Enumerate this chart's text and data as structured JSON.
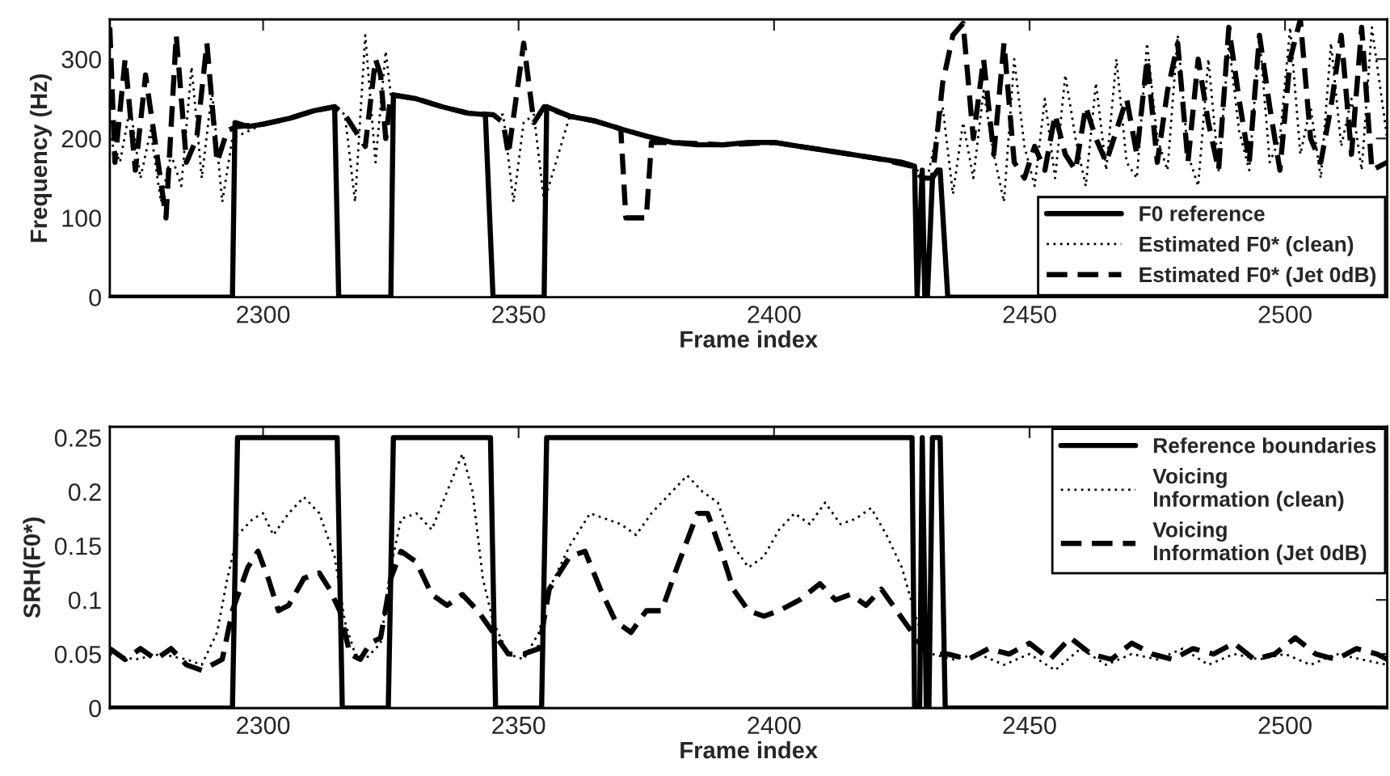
{
  "chart_data": [
    {
      "type": "line",
      "xlabel": "Frame index",
      "ylabel": "Frequency (Hz)",
      "xlim": [
        2270,
        2520
      ],
      "ylim": [
        0,
        350
      ],
      "xticks": [
        2300,
        2350,
        2400,
        2450,
        2500
      ],
      "yticks": [
        0,
        100,
        200,
        300
      ],
      "grid": false,
      "legend": "bottom right",
      "series": [
        {
          "name": "F0 reference",
          "color": "#000000",
          "line_style": "solid",
          "x": [
            2270,
            2294,
            2294.5,
            2297,
            2300,
            2305,
            2310,
            2314,
            2314.8,
            2325,
            2325.5,
            2330,
            2335,
            2340,
            2343.5,
            2345,
            2355,
            2355.5,
            2360,
            2365,
            2370,
            2375,
            2380,
            2385,
            2390,
            2395,
            2400,
            2405,
            2410,
            2415,
            2420,
            2425,
            2427.5,
            2428,
            2429,
            2429.5,
            2430,
            2431,
            2432,
            2432.5,
            2434,
            2520
          ],
          "values": [
            0,
            0,
            220,
            215,
            218,
            225,
            235,
            240,
            0,
            0,
            255,
            250,
            240,
            232,
            230,
            0,
            0,
            240,
            228,
            222,
            212,
            203,
            195,
            192,
            192,
            195,
            195,
            190,
            185,
            180,
            175,
            170,
            165,
            0,
            160,
            0,
            0,
            150,
            160,
            160,
            0,
            0
          ]
        },
        {
          "name": "Estimated F0* (clean)",
          "color": "#000000",
          "line_style": "dotted",
          "x": [
            2270,
            2272,
            2274,
            2276,
            2278,
            2280,
            2282,
            2284,
            2286,
            2288,
            2290,
            2292,
            2294,
            2300,
            2305,
            2310,
            2314,
            2316,
            2318,
            2320,
            2322,
            2324,
            2325,
            2330,
            2335,
            2340,
            2345,
            2347,
            2349,
            2351,
            2353,
            2355,
            2360,
            2370,
            2380,
            2390,
            2400,
            2410,
            2420,
            2427,
            2430,
            2433,
            2435,
            2437,
            2439,
            2441,
            2443,
            2445,
            2447,
            2449,
            2451,
            2453,
            2455,
            2457,
            2459,
            2461,
            2463,
            2465,
            2467,
            2469,
            2471,
            2473,
            2475,
            2477,
            2479,
            2481,
            2483,
            2485,
            2487,
            2489,
            2491,
            2493,
            2495,
            2497,
            2499,
            2501,
            2503,
            2505,
            2507,
            2509,
            2511,
            2513,
            2515,
            2517,
            2520
          ],
          "values": [
            200,
            170,
            240,
            150,
            210,
            120,
            180,
            140,
            290,
            150,
            260,
            120,
            200,
            218,
            225,
            235,
            240,
            230,
            120,
            330,
            170,
            310,
            255,
            250,
            240,
            232,
            230,
            230,
            120,
            220,
            230,
            120,
            228,
            212,
            195,
            192,
            195,
            185,
            175,
            165,
            150,
            240,
            130,
            220,
            150,
            260,
            180,
            120,
            300,
            190,
            140,
            250,
            150,
            280,
            200,
            140,
            270,
            160,
            300,
            170,
            150,
            320,
            200,
            160,
            330,
            180,
            140,
            300,
            160,
            320,
            210,
            160,
            330,
            170,
            200,
            340,
            180,
            240,
            150,
            320,
            190,
            250,
            160,
            340,
            200
          ]
        },
        {
          "name": "Estimated F0* (Jet 0dB)",
          "color": "#000000",
          "line_style": "dashed",
          "x": [
            2270,
            2271,
            2273,
            2275,
            2277,
            2279,
            2281,
            2283,
            2285,
            2287,
            2289,
            2291,
            2293,
            2295,
            2300,
            2305,
            2310,
            2314,
            2316,
            2318,
            2320,
            2322,
            2323,
            2324,
            2325,
            2330,
            2335,
            2340,
            2345,
            2347,
            2348,
            2351,
            2353,
            2355,
            2360,
            2365,
            2370,
            2371,
            2375,
            2376,
            2380,
            2390,
            2400,
            2410,
            2420,
            2427,
            2429,
            2431,
            2433,
            2435,
            2437,
            2439,
            2441,
            2443,
            2445,
            2447,
            2449,
            2451,
            2453,
            2455,
            2457,
            2459,
            2461,
            2463,
            2465,
            2467,
            2469,
            2471,
            2473,
            2475,
            2477,
            2479,
            2481,
            2483,
            2485,
            2487,
            2489,
            2491,
            2493,
            2495,
            2497,
            2499,
            2501,
            2503,
            2505,
            2507,
            2509,
            2511,
            2513,
            2515,
            2517,
            2520
          ],
          "values": [
            340,
            170,
            300,
            160,
            280,
            190,
            100,
            330,
            170,
            200,
            320,
            170,
            210,
            215,
            218,
            225,
            235,
            240,
            230,
            210,
            190,
            300,
            280,
            200,
            255,
            250,
            240,
            232,
            230,
            220,
            180,
            320,
            220,
            240,
            228,
            222,
            212,
            100,
            100,
            195,
            195,
            192,
            195,
            185,
            175,
            165,
            150,
            150,
            270,
            330,
            345,
            200,
            300,
            180,
            320,
            170,
            150,
            190,
            160,
            230,
            180,
            160,
            240,
            200,
            170,
            210,
            250,
            180,
            300,
            170,
            260,
            320,
            170,
            300,
            220,
            160,
            340,
            250,
            170,
            330,
            240,
            160,
            300,
            350,
            200,
            170,
            240,
            330,
            180,
            340,
            160,
            170
          ]
        }
      ]
    },
    {
      "type": "line",
      "xlabel": "Frame index",
      "ylabel": "SRH(F0*)",
      "xlim": [
        2270,
        2520
      ],
      "ylim": [
        0,
        0.26
      ],
      "xticks": [
        2300,
        2350,
        2400,
        2450,
        2500
      ],
      "yticks": [
        0,
        0.05,
        0.1,
        0.15,
        0.2,
        0.25
      ],
      "grid": false,
      "legend": "top right",
      "series": [
        {
          "name": "Reference boundaries",
          "color": "#000000",
          "line_style": "solid",
          "x": [
            2270,
            2294,
            2295,
            2314.5,
            2315.5,
            2324.5,
            2325.5,
            2344.5,
            2345.5,
            2354.5,
            2355.5,
            2427,
            2427.5,
            2428.5,
            2429,
            2429.8,
            2430.3,
            2431,
            2432.5,
            2433.5,
            2520
          ],
          "values": [
            0,
            0,
            0.25,
            0.25,
            0,
            0,
            0.25,
            0.25,
            0,
            0,
            0.25,
            0.25,
            0,
            0,
            0.25,
            0,
            0,
            0.25,
            0.25,
            0,
            0
          ]
        },
        {
          "name": "Voicing\nInformation (clean)",
          "color": "#000000",
          "line_style": "dotted",
          "x": [
            2270,
            2275,
            2280,
            2285,
            2288,
            2291,
            2293,
            2295,
            2298,
            2300,
            2302,
            2305,
            2308,
            2311,
            2314,
            2316,
            2318,
            2320,
            2323,
            2325,
            2327,
            2330,
            2333,
            2336,
            2339,
            2341,
            2343,
            2345,
            2348,
            2351,
            2354,
            2356,
            2360,
            2364,
            2367,
            2370,
            2373,
            2376,
            2380,
            2383,
            2386,
            2389,
            2392,
            2395,
            2398,
            2401,
            2404,
            2407,
            2410,
            2413,
            2416,
            2419,
            2422,
            2425,
            2428,
            2431,
            2435,
            2440,
            2445,
            2450,
            2455,
            2460,
            2465,
            2470,
            2475,
            2480,
            2485,
            2490,
            2495,
            2500,
            2505,
            2510,
            2515,
            2520
          ],
          "values": [
            0.05,
            0.045,
            0.05,
            0.045,
            0.04,
            0.07,
            0.12,
            0.16,
            0.175,
            0.18,
            0.16,
            0.18,
            0.195,
            0.18,
            0.14,
            0.08,
            0.05,
            0.045,
            0.06,
            0.13,
            0.175,
            0.18,
            0.165,
            0.2,
            0.235,
            0.2,
            0.12,
            0.08,
            0.05,
            0.045,
            0.07,
            0.11,
            0.15,
            0.18,
            0.175,
            0.17,
            0.16,
            0.18,
            0.2,
            0.215,
            0.2,
            0.19,
            0.15,
            0.13,
            0.14,
            0.165,
            0.18,
            0.17,
            0.19,
            0.17,
            0.175,
            0.185,
            0.16,
            0.13,
            0.08,
            0.05,
            0.045,
            0.05,
            0.04,
            0.05,
            0.035,
            0.055,
            0.04,
            0.05,
            0.045,
            0.055,
            0.04,
            0.05,
            0.045,
            0.05,
            0.04,
            0.05,
            0.045,
            0.04
          ]
        },
        {
          "name": "Voicing\nInformation (Jet 0dB)",
          "color": "#000000",
          "line_style": "dashed",
          "x": [
            2270,
            2273,
            2276,
            2279,
            2282,
            2285,
            2288,
            2290,
            2292,
            2294,
            2297,
            2299,
            2301,
            2303,
            2305,
            2308,
            2311,
            2313,
            2315,
            2317,
            2319,
            2321,
            2323,
            2325,
            2327,
            2330,
            2333,
            2336,
            2339,
            2342,
            2345,
            2348,
            2351,
            2354,
            2356,
            2360,
            2363,
            2366,
            2369,
            2372,
            2375,
            2378,
            2381,
            2385,
            2387,
            2390,
            2392,
            2395,
            2398,
            2401,
            2405,
            2409,
            2412,
            2415,
            2418,
            2421,
            2424,
            2427,
            2430,
            2434,
            2438,
            2442,
            2446,
            2450,
            2454,
            2458,
            2462,
            2466,
            2470,
            2474,
            2478,
            2482,
            2486,
            2490,
            2494,
            2498,
            2502,
            2506,
            2510,
            2514,
            2518,
            2520
          ],
          "values": [
            0.055,
            0.045,
            0.055,
            0.045,
            0.055,
            0.04,
            0.035,
            0.04,
            0.045,
            0.09,
            0.13,
            0.145,
            0.12,
            0.09,
            0.095,
            0.12,
            0.125,
            0.11,
            0.09,
            0.05,
            0.045,
            0.06,
            0.065,
            0.12,
            0.145,
            0.135,
            0.105,
            0.095,
            0.105,
            0.09,
            0.07,
            0.05,
            0.05,
            0.055,
            0.11,
            0.14,
            0.145,
            0.11,
            0.08,
            0.07,
            0.09,
            0.09,
            0.13,
            0.18,
            0.18,
            0.14,
            0.11,
            0.09,
            0.085,
            0.09,
            0.1,
            0.115,
            0.1,
            0.105,
            0.095,
            0.11,
            0.09,
            0.07,
            0.05,
            0.05,
            0.045,
            0.055,
            0.05,
            0.06,
            0.045,
            0.065,
            0.05,
            0.045,
            0.06,
            0.05,
            0.045,
            0.055,
            0.05,
            0.06,
            0.045,
            0.05,
            0.065,
            0.05,
            0.045,
            0.055,
            0.05,
            0.045
          ]
        }
      ]
    }
  ]
}
